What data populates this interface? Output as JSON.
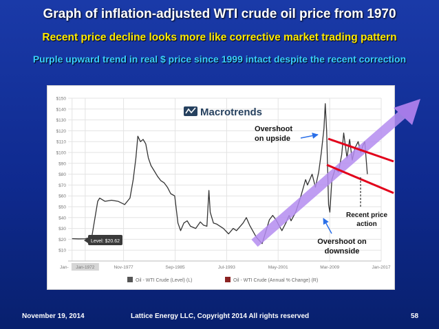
{
  "slide": {
    "title": "Graph of inflation-adjusted WTI crude oil price from 1970",
    "subtitle1": "Recent price decline looks more like corrective market trading pattern",
    "subtitle2": "Purple upward trend in real $ price since 1999 intact despite the recent correction",
    "footer_date": "November 19, 2014",
    "footer_copyright": "Lattice Energy LLC, Copyright 2014   All rights reserved",
    "page_number": "58"
  },
  "colors": {
    "background": "#1433a0",
    "title": "#ffffff",
    "subtitle1": "#ffea00",
    "subtitle2": "#39d0ff",
    "line": "#333333",
    "trend_arrow": "#b48cf0",
    "red_line": "#e2001a",
    "annotation_arrow": "#2a6fe8",
    "legend_level": "#555555",
    "legend_change": "#8b2323"
  },
  "chart_data": {
    "type": "line",
    "logo": "Macrotrends",
    "xlim": [
      1969.4,
      2017.0
    ],
    "ylim": [
      0,
      150
    ],
    "y_ticks": [
      10,
      20,
      30,
      40,
      50,
      60,
      70,
      80,
      90,
      100,
      110,
      120,
      130,
      140,
      150
    ],
    "y_tick_labels": [
      "$10",
      "$20",
      "$30",
      "$40",
      "$50",
      "$60",
      "$70",
      "$80",
      "$90",
      "$100",
      "$110",
      "$120",
      "$130",
      "$140",
      "$150"
    ],
    "x_ticks": [
      1970.0,
      1972.0,
      1977.83,
      1985.67,
      1993.5,
      2001.33,
      2009.17,
      2017.0
    ],
    "x_tick_labels": [
      "Jan-",
      "Jan-1972",
      "Nov-1977",
      "Sep-1985",
      "Jul-1993",
      "May-2001",
      "Mar-2009",
      "Jan-2017"
    ],
    "grid": true,
    "tooltip": "Level: $20.62",
    "legend": [
      "Oil - WTI Crude (Level) (L)",
      "Oil - WTI Crude (Annual % Change) (R)"
    ],
    "series": [
      {
        "name": "Oil - WTI Crude (Level) (L)",
        "x": [
          1970.0,
          1971.0,
          1972.0,
          1973.0,
          1973.9,
          1974.2,
          1975.0,
          1976.0,
          1977.0,
          1978.0,
          1978.8,
          1979.3,
          1979.7,
          1980.0,
          1980.4,
          1980.8,
          1981.2,
          1981.6,
          1982.0,
          1982.5,
          1983.0,
          1983.5,
          1984.0,
          1984.5,
          1985.0,
          1985.6,
          1986.1,
          1986.5,
          1987.0,
          1987.5,
          1988.0,
          1988.8,
          1989.5,
          1990.0,
          1990.5,
          1990.8,
          1991.0,
          1991.5,
          1992.0,
          1993.0,
          1993.8,
          1994.5,
          1995.0,
          1996.0,
          1996.5,
          1997.0,
          1998.0,
          1998.9,
          1999.5,
          2000.0,
          2000.5,
          2001.0,
          2001.9,
          2002.5,
          2003.0,
          2003.3,
          2004.0,
          2004.8,
          2005.5,
          2005.8,
          2006.5,
          2007.0,
          2007.5,
          2007.9,
          2008.3,
          2008.5,
          2008.7,
          2009.0,
          2009.2,
          2009.5,
          2010.0,
          2010.5,
          2011.0,
          2011.3,
          2011.8,
          2012.2,
          2012.6,
          2013.0,
          2013.5,
          2013.9,
          2014.2,
          2014.5,
          2014.7,
          2014.9
        ],
        "values": [
          20.6,
          20.4,
          20.5,
          22.0,
          55.0,
          58.0,
          55.0,
          56.0,
          55.0,
          52.0,
          58.0,
          75.0,
          95.0,
          115.0,
          110.0,
          112.0,
          108.0,
          95.0,
          88.0,
          83.0,
          78.0,
          74.0,
          72.0,
          68.0,
          62.0,
          60.0,
          35.0,
          28.0,
          35.0,
          37.0,
          32.0,
          30.0,
          36.0,
          33.0,
          32.0,
          65.0,
          45.0,
          35.0,
          34.0,
          30.0,
          25.0,
          30.0,
          28.0,
          35.0,
          40.0,
          33.0,
          22.0,
          16.0,
          28.0,
          38.0,
          42.0,
          38.0,
          28.0,
          35.0,
          42.0,
          37.0,
          45.0,
          60.0,
          75.0,
          70.0,
          80.0,
          68.0,
          82.0,
          100.0,
          122.0,
          145.0,
          120.0,
          52.0,
          45.0,
          75.0,
          85.0,
          82.0,
          98.0,
          118.0,
          95.0,
          112.0,
          93.0,
          104.0,
          110.0,
          100.0,
          106.0,
          110.0,
          95.0,
          80.0
        ]
      }
    ],
    "annotations": [
      {
        "text": "Overshoot on upside"
      },
      {
        "text": "Overshoot on downside"
      },
      {
        "text": "Recent price action"
      }
    ]
  }
}
